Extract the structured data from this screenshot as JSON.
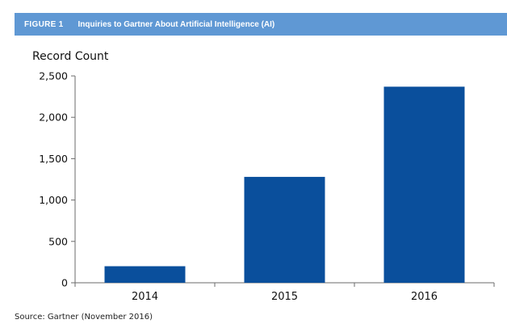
{
  "figure": {
    "label": "FIGURE 1",
    "title": "Inquiries to Gartner About Artificial Intelligence (AI)",
    "header_color": "#5f98d4",
    "source": "Source: Gartner (November 2016)"
  },
  "chart_data": {
    "type": "bar",
    "title": "Inquiries to Gartner About Artificial Intelligence (AI)",
    "xlabel": "",
    "ylabel": "Record Count",
    "categories": [
      "2014",
      "2015",
      "2016"
    ],
    "values": [
      200,
      1280,
      2370
    ],
    "ylim": [
      0,
      2500
    ],
    "yticks": [
      0,
      500,
      1000,
      1500,
      2000,
      2500
    ],
    "ytick_labels": [
      "0",
      "500",
      "1,000",
      "1,500",
      "2,000",
      "2,500"
    ],
    "bar_color": "#0a4f9c",
    "grid": false,
    "legend": "none"
  }
}
